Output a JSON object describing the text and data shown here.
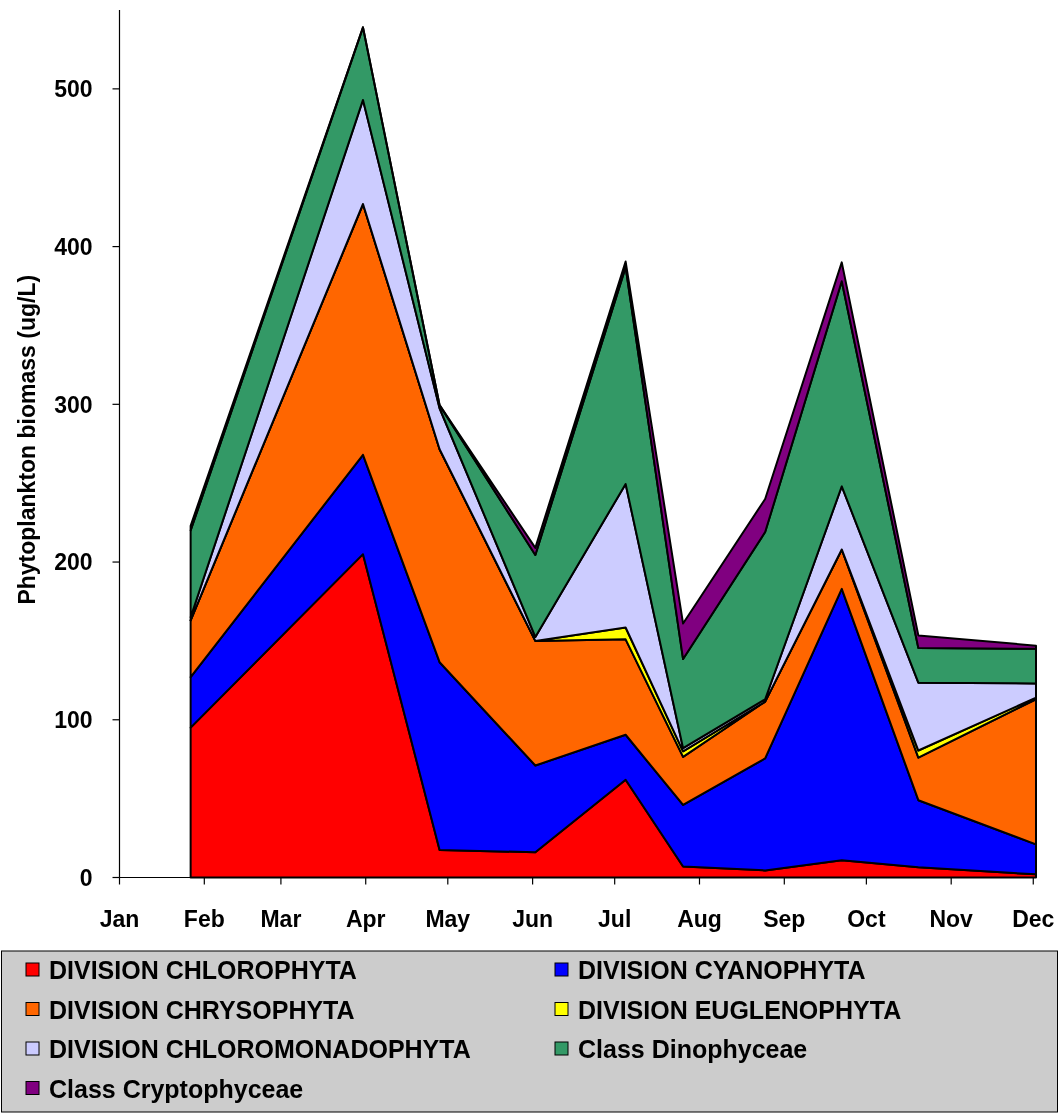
{
  "chart_data": {
    "type": "area",
    "stacked": true,
    "ylabel": "Phytoplankton biomass (ug/L)",
    "x": [
      "--01-27",
      "--03-31",
      "--04-28",
      "--06-02",
      "--07-05",
      "--07-26",
      "--08-25",
      "--09-22",
      "--10-20",
      "--12-02"
    ],
    "xlim": [
      "--01-01",
      "--12-02"
    ],
    "xticks": [
      {
        "value": "--01-01",
        "label": "Jan"
      },
      {
        "value": "--02-01",
        "label": "Feb"
      },
      {
        "value": "--03-01",
        "label": "Mar"
      },
      {
        "value": "--04-01",
        "label": "Apr"
      },
      {
        "value": "--05-01",
        "label": "May"
      },
      {
        "value": "--06-01",
        "label": "Jun"
      },
      {
        "value": "--07-01",
        "label": "Jul"
      },
      {
        "value": "--08-01",
        "label": "Aug"
      },
      {
        "value": "--09-01",
        "label": "Sep"
      },
      {
        "value": "--10-01",
        "label": "Oct"
      },
      {
        "value": "--11-01",
        "label": "Nov"
      },
      {
        "value": "--12-01",
        "label": "Dec"
      }
    ],
    "ylim": [
      0,
      550
    ],
    "yticks": [
      0,
      100,
      200,
      300,
      400,
      500
    ],
    "legend": "bottom",
    "series": [
      {
        "name": "DIVISION CHLOROPHYTA",
        "color": "#ff0000",
        "values": [
          95,
          205,
          17.5,
          16,
          62,
          7,
          4.5,
          11,
          6.5,
          2
        ]
      },
      {
        "name": "DIVISION CYANOPHYTA",
        "color": "#0000ff",
        "values": [
          32,
          63,
          119,
          55,
          28.5,
          39,
          71,
          172,
          42.5,
          19
        ]
      },
      {
        "name": "DIVISION CHRYSOPHYTA",
        "color": "#ff6600",
        "values": [
          36,
          159,
          135,
          79,
          60.5,
          30.5,
          36,
          25,
          27,
          92
        ]
      },
      {
        "name": "DIVISION EUGLENOPHYTA",
        "color": "#ffff00",
        "values": [
          0,
          0,
          0,
          0,
          7.5,
          3.5,
          0,
          0,
          4.5,
          1
        ]
      },
      {
        "name": "DIVISION CHLOROMONADOPHYTA",
        "color": "#ccccff",
        "values": [
          2,
          66,
          26,
          2.5,
          91,
          2,
          1.5,
          40,
          43,
          9
        ]
      },
      {
        "name": "Class Dinophyceae",
        "color": "#339966",
        "values": [
          55,
          46,
          2,
          52,
          137.5,
          56.5,
          106,
          130,
          22,
          22
        ]
      },
      {
        "name": "Class Cryptophyceae",
        "color": "#800080",
        "values": [
          3,
          0,
          0,
          4.5,
          3.5,
          22.5,
          21,
          12,
          8,
          2
        ]
      }
    ]
  }
}
